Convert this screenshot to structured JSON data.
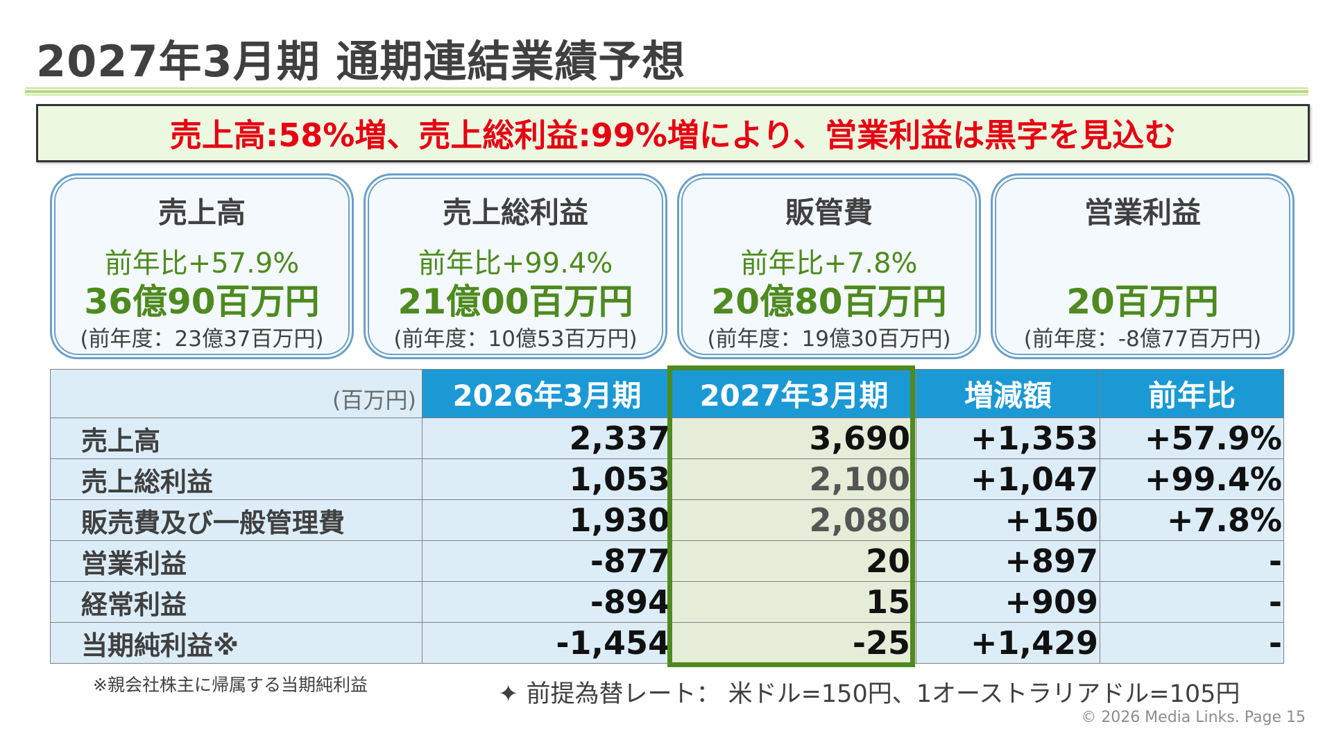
{
  "slide": {
    "title": "2027年3月期 通期連結業績予想",
    "headline": "売上高:58%増、売上総利益:99%増により、営業利益は黒字を見込む"
  },
  "cards": [
    {
      "title": "売上高",
      "yoy": "前年比+57.9%",
      "value": "36億90百万円",
      "prev": "(前年度：23億37百万円)"
    },
    {
      "title": "売上総利益",
      "yoy": "前年比+99.4%",
      "value": "21億00百万円",
      "prev": "(前年度：10億53百万円)"
    },
    {
      "title": "販管費",
      "yoy": "前年比+7.8%",
      "value": "20億80百万円",
      "prev": "(前年度：19億30百万円)"
    },
    {
      "title": "営業利益",
      "yoy": "",
      "value": "20百万円",
      "prev": "(前年度：-8億77百万円)"
    }
  ],
  "table": {
    "unit": "(百万円)",
    "headers": [
      "2026年3月期",
      "2027年3月期",
      "増減額",
      "前年比"
    ],
    "rows": [
      {
        "label": "売上高",
        "fy2026": "2,337",
        "fy2027": "3,690",
        "change": "+1,353",
        "yoy": "+57.9%"
      },
      {
        "label": "売上総利益",
        "fy2026": "1,053",
        "fy2027": "2,100",
        "change": "+1,047",
        "yoy": "+99.4%"
      },
      {
        "label": "販売費及び一般管理費",
        "fy2026": "1,930",
        "fy2027": "2,080",
        "change": "+150",
        "yoy": "+7.8%"
      },
      {
        "label": "営業利益",
        "fy2026": "-877",
        "fy2027": "20",
        "change": "+897",
        "yoy": "-"
      },
      {
        "label": "経常利益",
        "fy2026": "-894",
        "fy2027": "15",
        "change": "+909",
        "yoy": "-"
      },
      {
        "label": "当期純利益※",
        "fy2026": "-1,454",
        "fy2027": "-25",
        "change": "+1,429",
        "yoy": "-"
      }
    ]
  },
  "notes": {
    "footnote": "※親会社株主に帰属する当期純利益",
    "fx": "✦ 前提為替レート： 米ドル=150円、1オーストラリアドル=105円"
  },
  "footer": {
    "copyright": "© 2026 Media  Links. Page 15"
  },
  "colors": {
    "headline_text": "#e60012",
    "headline_bg": "#edf8e1",
    "card_accent": "#4e8a1f",
    "card_border": "#6a9fc7",
    "table_header": "#1b99d5",
    "table_body": "#dcedf8",
    "forecast_highlight": "#4e8a1f"
  }
}
